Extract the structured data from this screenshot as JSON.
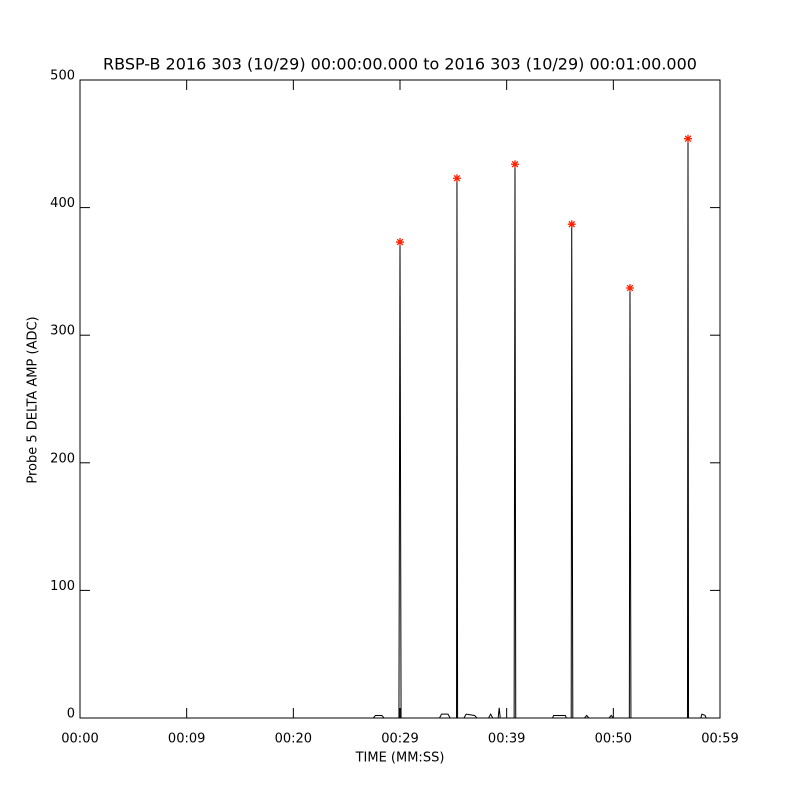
{
  "chart_data": {
    "type": "line",
    "title": "RBSP-B 2016 303 (10/29) 00:00:00.000 to 2016 303 (10/29) 00:01:00.000",
    "x_label": "TIME (MM:SS)",
    "y_label": "Probe 5 DELTA AMP (ADC)",
    "xlim": [
      0,
      60
    ],
    "ylim": [
      0,
      500
    ],
    "xticks": [
      {
        "value": 0,
        "label": "00:00"
      },
      {
        "value": 10,
        "label": "00:09"
      },
      {
        "value": 20,
        "label": "00:20"
      },
      {
        "value": 30,
        "label": "00:29"
      },
      {
        "value": 40,
        "label": "00:39"
      },
      {
        "value": 50,
        "label": "00:50"
      },
      {
        "value": 60,
        "label": "00:59"
      }
    ],
    "yticks": [
      0,
      100,
      200,
      300,
      400,
      500
    ],
    "series": [
      {
        "color": "#000000",
        "x": [
          0,
          27.5,
          27.7,
          28.3,
          28.5,
          29.9,
          30.0,
          30.1,
          33.7,
          33.9,
          34.5,
          34.7,
          35.3,
          35.34,
          35.4,
          36.0,
          36.2,
          37.0,
          37.2,
          38.3,
          38.5,
          38.7,
          39.2,
          39.3,
          39.4,
          40.7,
          40.78,
          40.85,
          44.3,
          44.4,
          45.5,
          45.6,
          46.05,
          46.1,
          46.2,
          47.3,
          47.5,
          47.7,
          49.6,
          49.8,
          50.0,
          51.5,
          51.56,
          51.65,
          56.95,
          57.0,
          57.05,
          58.2,
          58.3,
          58.6,
          58.7,
          59.0
        ],
        "values": [
          0,
          0,
          2,
          2,
          0,
          0,
          373,
          0,
          0,
          3,
          3,
          0,
          0,
          423,
          0,
          0,
          3,
          2,
          0,
          0,
          3,
          0,
          0,
          8,
          0,
          0,
          434,
          0,
          0,
          2,
          2,
          0,
          0,
          387,
          0,
          0,
          2,
          0,
          0,
          2,
          0,
          0,
          337,
          0,
          0,
          454,
          0,
          0,
          3,
          2,
          0,
          0
        ]
      },
      {
        "color": "#ff2000",
        "marker": "star",
        "x": [
          30.0,
          35.34,
          40.78,
          46.1,
          51.56,
          57.0
        ],
        "values": [
          373,
          423,
          434,
          387,
          337,
          454
        ]
      }
    ]
  }
}
